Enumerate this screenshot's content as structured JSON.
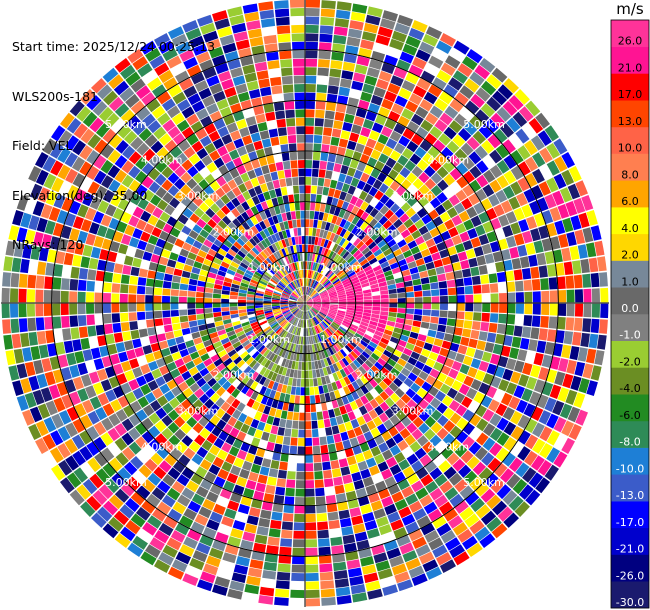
{
  "info": {
    "start_time": "Start time: 2025/12/24 00:25:13",
    "station": "WLS200s-181",
    "field": "Field: VEL",
    "elevation": "Elevation(deg): 35.00",
    "nrays": "NRays: 120"
  },
  "chart_data": {
    "type": "heatmap",
    "projection": "polar (PPI)",
    "field": "VEL",
    "elevation_deg": 35.0,
    "nrays": 120,
    "max_range_km": 6.0,
    "range_rings_km": [
      1.0,
      2.0,
      3.0,
      4.0,
      5.0
    ],
    "ring_labels": [
      "1.00km",
      "2.00km",
      "3.00km",
      "4.00km",
      "5.00km"
    ],
    "colorbar": {
      "unit": "m/s",
      "levels": [
        -30.0,
        -26.0,
        -21.0,
        -17.0,
        -13.0,
        -10.0,
        -8.0,
        -6.0,
        -4.0,
        -2.0,
        -1.0,
        0.0,
        1.0,
        2.0,
        4.0,
        6.0,
        8.0,
        10.0,
        13.0,
        17.0,
        21.0,
        26.0
      ],
      "labels": [
        "-30.0",
        "-26.0",
        "-21.0",
        "-17.0",
        "-13.0",
        "-10.0",
        "-8.0",
        "-6.0",
        "-4.0",
        "-2.0",
        "-1.0",
        "0.0",
        "1.0",
        "2.0",
        "4.0",
        "6.0",
        "8.0",
        "10.0",
        "13.0",
        "17.0",
        "21.0",
        "26.0"
      ],
      "colors": [
        "#1a1a6e",
        "#000080",
        "#0000cd",
        "#0000ff",
        "#3b5cc9",
        "#1e7fd6",
        "#2e8b57",
        "#228b22",
        "#6b8e23",
        "#9acd32",
        "#808080",
        "#696969",
        "#778899",
        "#ffd700",
        "#ffff00",
        "#ffa500",
        "#ff7f50",
        "#ff6347",
        "#ff4500",
        "#ff0000",
        "#ff1493",
        "#ff3399"
      ]
    }
  }
}
